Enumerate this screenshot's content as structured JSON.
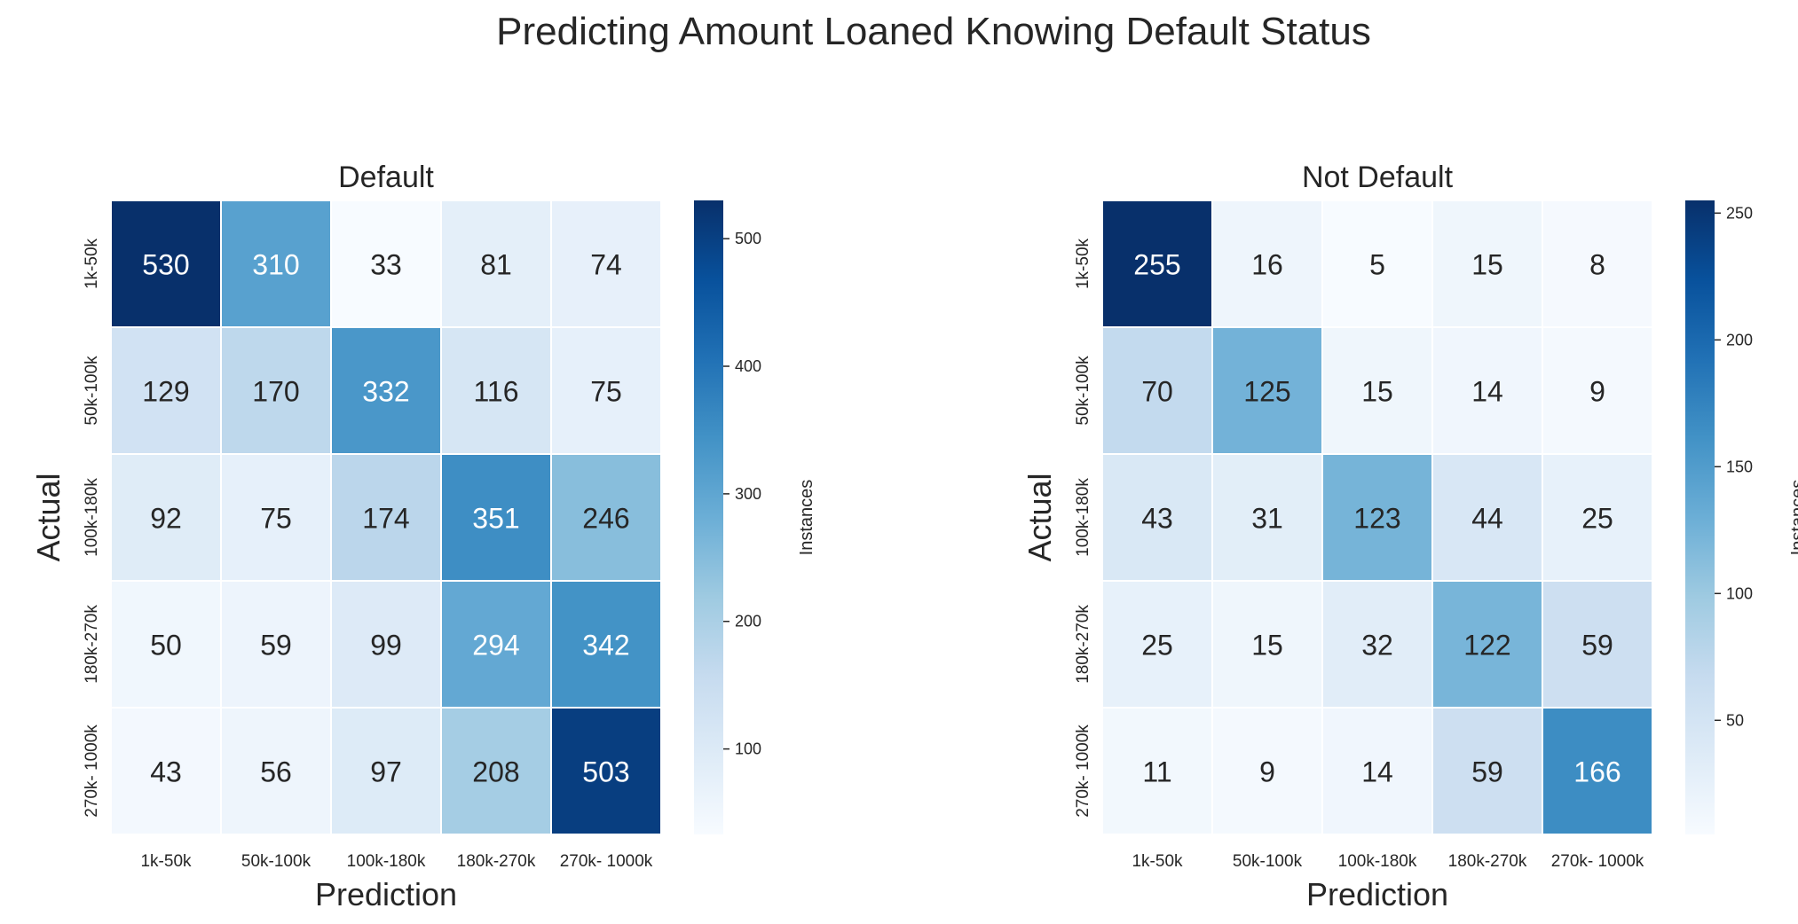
{
  "chart_data": {
    "title": "Predicting Amount Loaned Knowing Default Status",
    "colormap": "Blues",
    "charts": [
      {
        "type": "heatmap",
        "title": "Default",
        "xlabel": "Prediction",
        "ylabel": "Actual",
        "x_categories": [
          "1k-50k",
          "50k-100k",
          "100k-180k",
          "180k-270k",
          "270k- 1000k"
        ],
        "y_categories": [
          "1k-50k",
          "50k-100k",
          "100k-180k",
          "180k-270k",
          "270k- 1000k"
        ],
        "values": [
          [
            530,
            310,
            33,
            81,
            74
          ],
          [
            129,
            170,
            332,
            116,
            75
          ],
          [
            92,
            75,
            174,
            351,
            246
          ],
          [
            50,
            59,
            99,
            294,
            342
          ],
          [
            43,
            56,
            97,
            208,
            503
          ]
        ],
        "colorbar": {
          "label": "Instances",
          "range": [
            33,
            530
          ],
          "ticks": [
            100,
            200,
            300,
            400,
            500
          ]
        }
      },
      {
        "type": "heatmap",
        "title": "Not Default",
        "xlabel": "Prediction",
        "ylabel": "Actual",
        "x_categories": [
          "1k-50k",
          "50k-100k",
          "100k-180k",
          "180k-270k",
          "270k- 1000k"
        ],
        "y_categories": [
          "1k-50k",
          "50k-100k",
          "100k-180k",
          "180k-270k",
          "270k- 1000k"
        ],
        "values": [
          [
            255,
            16,
            5,
            15,
            8
          ],
          [
            70,
            125,
            15,
            14,
            9
          ],
          [
            43,
            31,
            123,
            44,
            25
          ],
          [
            25,
            15,
            32,
            122,
            59
          ],
          [
            11,
            9,
            14,
            59,
            166
          ]
        ],
        "colorbar": {
          "label": "Instances",
          "range": [
            5,
            255
          ],
          "ticks": [
            50,
            100,
            150,
            200,
            250
          ]
        }
      }
    ]
  }
}
